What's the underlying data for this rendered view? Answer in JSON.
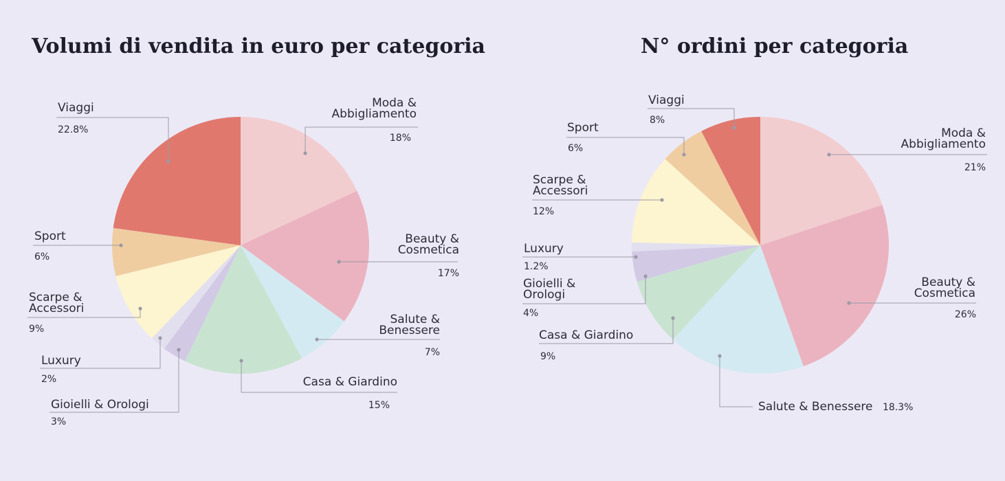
{
  "colors": {
    "background": "#ece9f6",
    "Moda & Abbigliamento": "#f2cdd0",
    "Beauty & Cosmetica": "#ebb3c0",
    "Salute & Benessere": "#d4eaf2",
    "Casa & Giardino": "#c9e3d1",
    "Gioielli & Orologi": "#d2c9e4",
    "Luxury": "#e2dfef",
    "Scarpe & Accessori": "#fdf5cf",
    "Sport": "#efcda1",
    "Viaggi": "#e0786e"
  },
  "chart_data": [
    {
      "type": "pie",
      "title": "Volumi di vendita in euro per categoria",
      "start": "12 o'clock",
      "direction": "clockwise",
      "categories": [
        "Moda & Abbigliamento",
        "Beauty & Cosmetica",
        "Salute & Benessere",
        "Casa & Giardino",
        "Gioielli & Orologi",
        "Luxury",
        "Scarpe & Accessori",
        "Sport",
        "Viaggi"
      ],
      "values": [
        18,
        17,
        7,
        15,
        3,
        2,
        9,
        6,
        22.8
      ],
      "slice_labels": [
        [
          "Moda &",
          "Abbigliamento"
        ],
        [
          "Beauty &",
          "Cosmetica"
        ],
        [
          "Salute &",
          "Benessere"
        ],
        [
          "Casa & Giardino"
        ],
        [
          "Gioielli & Orologi"
        ],
        [
          "Luxury"
        ],
        [
          "Scarpe &",
          "Accessori"
        ],
        [
          "Sport"
        ],
        [
          "Viaggi"
        ]
      ],
      "value_labels": [
        "18%",
        "17%",
        "7%",
        "15%",
        "3%",
        "2%",
        "9%",
        "6%",
        "22.8%"
      ]
    },
    {
      "type": "pie",
      "title": "N° ordini per categoria",
      "start": "12 o'clock",
      "direction": "clockwise",
      "categories": [
        "Moda & Abbigliamento",
        "Beauty & Cosmetica",
        "Salute & Benessere",
        "Casa & Giardino",
        "Gioielli & Orologi",
        "Luxury",
        "Scarpe & Accessori",
        "Sport",
        "Viaggi"
      ],
      "values": [
        21,
        26,
        18.3,
        9,
        4,
        1.2,
        12,
        6,
        8
      ],
      "slice_labels": [
        [
          "Moda &",
          "Abbigliamento"
        ],
        [
          "Beauty &",
          "Cosmetica"
        ],
        [
          "Salute & Benessere"
        ],
        [
          "Casa & Giardino"
        ],
        [
          "Gioielli &",
          "Orologi"
        ],
        [
          "Luxury"
        ],
        [
          "Scarpe &",
          "Accessori"
        ],
        [
          "Sport"
        ],
        [
          "Viaggi"
        ]
      ],
      "value_labels": [
        "21%",
        "26%",
        "18.3%",
        "9%",
        "4%",
        "1.2%",
        "12%",
        "6%",
        "8%"
      ]
    }
  ]
}
